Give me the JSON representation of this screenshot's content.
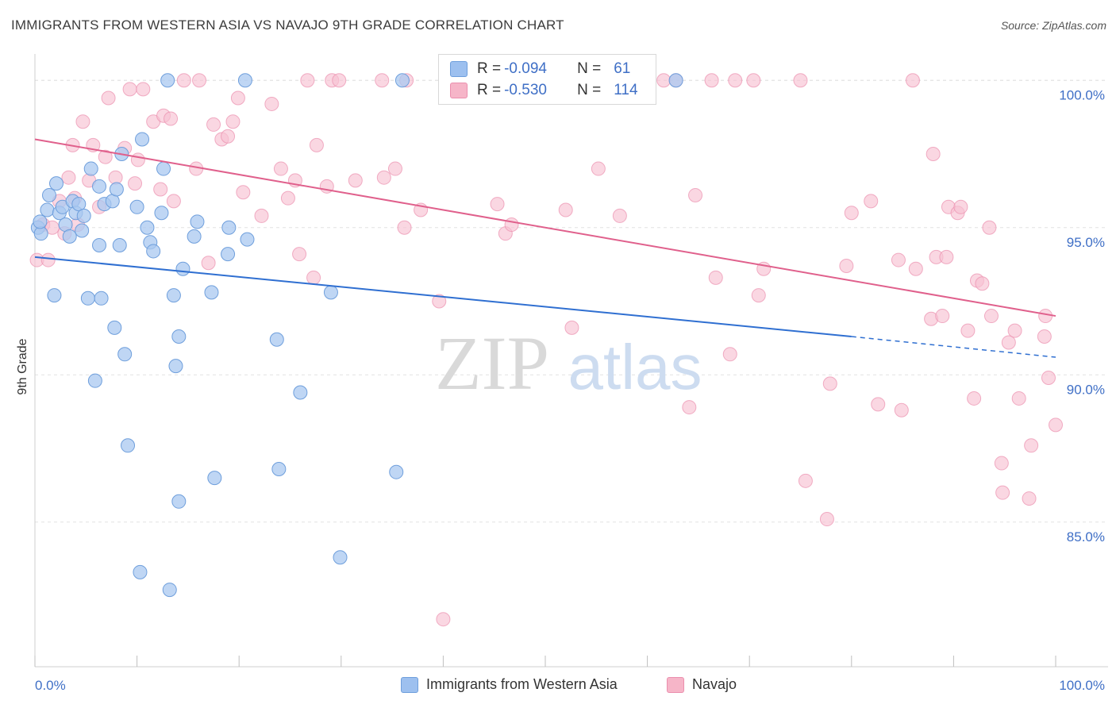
{
  "title": "IMMIGRANTS FROM WESTERN ASIA VS NAVAJO 9TH GRADE CORRELATION CHART",
  "source_prefix": "Source: ",
  "source_name": "ZipAtlas.com",
  "watermark": {
    "zip": "ZIP",
    "atlas": "atlas"
  },
  "legend": {
    "rows": [
      {
        "r_label": "R = ",
        "r_value": "-0.094",
        "n_label": "N = ",
        "n_value": "61",
        "color": "#9dc0ef"
      },
      {
        "r_label": "R = ",
        "r_value": "-0.530",
        "n_label": "N = ",
        "n_value": "114",
        "color": "#f6b5c8"
      }
    ]
  },
  "bottom_legend": [
    {
      "label": "Immigrants from Western Asia",
      "color": "#9dc0ef"
    },
    {
      "label": "Navajo",
      "color": "#f6b5c8"
    }
  ],
  "chart_data": {
    "type": "scatter",
    "title": "IMMIGRANTS FROM WESTERN ASIA VS NAVAJO 9TH GRADE CORRELATION CHART",
    "xlabel": "",
    "ylabel": "9th Grade",
    "xlim": [
      0,
      100
    ],
    "ylim": [
      80.6,
      100.6
    ],
    "y_ticks": [
      85,
      90,
      95,
      100
    ],
    "y_tick_labels": [
      "85.0%",
      "90.0%",
      "95.0%",
      "100.0%"
    ],
    "x_tick_labels": [
      "0.0%",
      "100.0%"
    ],
    "grid": "horizontal dashed",
    "legend_position": "top-center",
    "colors": {
      "blue_fill": "#a9c8f0",
      "blue_stroke": "#6f9fdc",
      "blue_line": "#2f6fd1",
      "pink_fill": "#f8c2d2",
      "pink_stroke": "#eb8fae",
      "pink_line": "#e0608c",
      "axis_text": "#3f6fc6",
      "grid": "#e2e2e2"
    },
    "series": [
      {
        "name": "Immigrants from Western Asia",
        "color": "#9dc0ef",
        "r": -0.094,
        "n": 61,
        "trend": {
          "x0": 0,
          "y0": 94.0,
          "x1": 80,
          "y1": 91.3,
          "dash_to_x": 100,
          "dash_to_y": 90.6
        },
        "points": [
          [
            0.3,
            95.0
          ],
          [
            0.6,
            94.8
          ],
          [
            0.5,
            95.2
          ],
          [
            1.2,
            95.6
          ],
          [
            1.4,
            96.1
          ],
          [
            2.1,
            96.5
          ],
          [
            2.4,
            95.5
          ],
          [
            2.7,
            95.7
          ],
          [
            3.0,
            95.1
          ],
          [
            3.4,
            94.7
          ],
          [
            3.7,
            95.9
          ],
          [
            4.0,
            95.5
          ],
          [
            4.3,
            95.8
          ],
          [
            4.6,
            94.9
          ],
          [
            4.8,
            95.4
          ],
          [
            5.5,
            97.0
          ],
          [
            6.3,
            96.4
          ],
          [
            6.8,
            95.8
          ],
          [
            7.6,
            95.9
          ],
          [
            8.0,
            96.3
          ],
          [
            8.5,
            97.5
          ],
          [
            10.0,
            95.7
          ],
          [
            10.5,
            98.0
          ],
          [
            11.0,
            95.0
          ],
          [
            11.3,
            94.5
          ],
          [
            11.6,
            94.2
          ],
          [
            12.4,
            95.5
          ],
          [
            12.6,
            97.0
          ],
          [
            13.0,
            100.0
          ],
          [
            15.9,
            95.2
          ],
          [
            15.6,
            94.7
          ],
          [
            19.0,
            95.0
          ],
          [
            18.9,
            94.1
          ],
          [
            20.8,
            94.6
          ],
          [
            20.6,
            100.0
          ],
          [
            6.3,
            94.4
          ],
          [
            8.3,
            94.4
          ],
          [
            13.6,
            92.7
          ],
          [
            14.5,
            93.6
          ],
          [
            17.3,
            92.8
          ],
          [
            1.9,
            92.7
          ],
          [
            5.2,
            92.6
          ],
          [
            6.5,
            92.6
          ],
          [
            7.8,
            91.6
          ],
          [
            8.8,
            90.7
          ],
          [
            5.9,
            89.8
          ],
          [
            13.8,
            90.3
          ],
          [
            14.1,
            91.3
          ],
          [
            23.7,
            91.2
          ],
          [
            26.0,
            89.4
          ],
          [
            29.0,
            92.8
          ],
          [
            9.1,
            87.6
          ],
          [
            17.6,
            86.5
          ],
          [
            23.9,
            86.8
          ],
          [
            35.4,
            86.7
          ],
          [
            14.1,
            85.7
          ],
          [
            10.3,
            83.3
          ],
          [
            13.2,
            82.7
          ],
          [
            29.9,
            83.8
          ],
          [
            62.8,
            100.0
          ],
          [
            36.0,
            100.0
          ]
        ]
      },
      {
        "name": "Navajo",
        "color": "#f6b5c8",
        "r": -0.53,
        "n": 114,
        "trend": {
          "x0": 0,
          "y0": 98.0,
          "x1": 100,
          "y1": 92.0
        },
        "points": [
          [
            0.2,
            93.9
          ],
          [
            0.8,
            95.1
          ],
          [
            1.3,
            93.9
          ],
          [
            1.7,
            95.0
          ],
          [
            2.4,
            95.9
          ],
          [
            2.9,
            94.8
          ],
          [
            3.3,
            96.7
          ],
          [
            3.7,
            97.8
          ],
          [
            3.9,
            96.0
          ],
          [
            4.2,
            95.1
          ],
          [
            4.7,
            98.6
          ],
          [
            5.3,
            96.6
          ],
          [
            5.7,
            97.8
          ],
          [
            6.3,
            95.7
          ],
          [
            6.9,
            97.4
          ],
          [
            7.2,
            99.4
          ],
          [
            7.9,
            96.7
          ],
          [
            8.8,
            97.7
          ],
          [
            9.3,
            99.7
          ],
          [
            9.8,
            96.5
          ],
          [
            10.1,
            97.3
          ],
          [
            10.6,
            99.7
          ],
          [
            11.6,
            98.6
          ],
          [
            12.3,
            96.3
          ],
          [
            12.6,
            98.8
          ],
          [
            13.3,
            98.7
          ],
          [
            13.6,
            95.9
          ],
          [
            14.6,
            100.0
          ],
          [
            15.8,
            97.0
          ],
          [
            16.1,
            100.0
          ],
          [
            17.0,
            93.8
          ],
          [
            17.5,
            98.5
          ],
          [
            18.3,
            98.0
          ],
          [
            18.9,
            98.1
          ],
          [
            19.4,
            98.6
          ],
          [
            19.9,
            99.4
          ],
          [
            20.4,
            96.2
          ],
          [
            22.2,
            95.4
          ],
          [
            23.2,
            99.2
          ],
          [
            24.1,
            97.0
          ],
          [
            24.8,
            96.0
          ],
          [
            25.5,
            96.6
          ],
          [
            25.9,
            94.1
          ],
          [
            26.7,
            100.0
          ],
          [
            27.3,
            93.3
          ],
          [
            27.6,
            97.8
          ],
          [
            28.6,
            96.4
          ],
          [
            29.1,
            100.0
          ],
          [
            29.8,
            100.0
          ],
          [
            31.4,
            96.6
          ],
          [
            34.0,
            100.0
          ],
          [
            34.2,
            96.7
          ],
          [
            35.3,
            97.0
          ],
          [
            36.2,
            95.0
          ],
          [
            36.4,
            100.0
          ],
          [
            37.8,
            95.6
          ],
          [
            39.6,
            92.5
          ],
          [
            45.3,
            95.8
          ],
          [
            46.1,
            94.8
          ],
          [
            46.7,
            95.1
          ],
          [
            52.0,
            95.6
          ],
          [
            52.6,
            91.6
          ],
          [
            55.2,
            97.0
          ],
          [
            55.9,
            100.0
          ],
          [
            57.3,
            95.4
          ],
          [
            61.6,
            100.0
          ],
          [
            62.8,
            100.0
          ],
          [
            64.1,
            88.9
          ],
          [
            66.3,
            100.0
          ],
          [
            64.7,
            96.1
          ],
          [
            66.7,
            93.3
          ],
          [
            68.1,
            90.7
          ],
          [
            68.6,
            100.0
          ],
          [
            70.4,
            100.0
          ],
          [
            70.9,
            92.7
          ],
          [
            71.4,
            93.6
          ],
          [
            75.0,
            100.0
          ],
          [
            75.5,
            86.4
          ],
          [
            77.6,
            85.1
          ],
          [
            77.9,
            89.7
          ],
          [
            79.5,
            93.7
          ],
          [
            80.0,
            95.5
          ],
          [
            81.9,
            95.9
          ],
          [
            82.6,
            89.0
          ],
          [
            84.6,
            93.9
          ],
          [
            84.9,
            88.8
          ],
          [
            86.0,
            100.0
          ],
          [
            86.3,
            93.6
          ],
          [
            87.8,
            91.9
          ],
          [
            88.0,
            97.5
          ],
          [
            88.3,
            94.0
          ],
          [
            88.9,
            92.0
          ],
          [
            89.3,
            94.0
          ],
          [
            89.5,
            95.7
          ],
          [
            90.4,
            95.5
          ],
          [
            90.7,
            95.7
          ],
          [
            91.4,
            91.5
          ],
          [
            92.0,
            89.2
          ],
          [
            92.3,
            93.2
          ],
          [
            92.8,
            93.1
          ],
          [
            93.5,
            95.0
          ],
          [
            93.7,
            92.0
          ],
          [
            94.7,
            87.0
          ],
          [
            94.8,
            86.0
          ],
          [
            95.4,
            91.1
          ],
          [
            96.0,
            91.5
          ],
          [
            96.4,
            89.2
          ],
          [
            97.4,
            85.8
          ],
          [
            97.6,
            87.6
          ],
          [
            98.9,
            91.3
          ],
          [
            99.0,
            92.0
          ],
          [
            99.3,
            89.9
          ],
          [
            100.0,
            88.3
          ],
          [
            40.0,
            81.7
          ]
        ]
      }
    ]
  }
}
